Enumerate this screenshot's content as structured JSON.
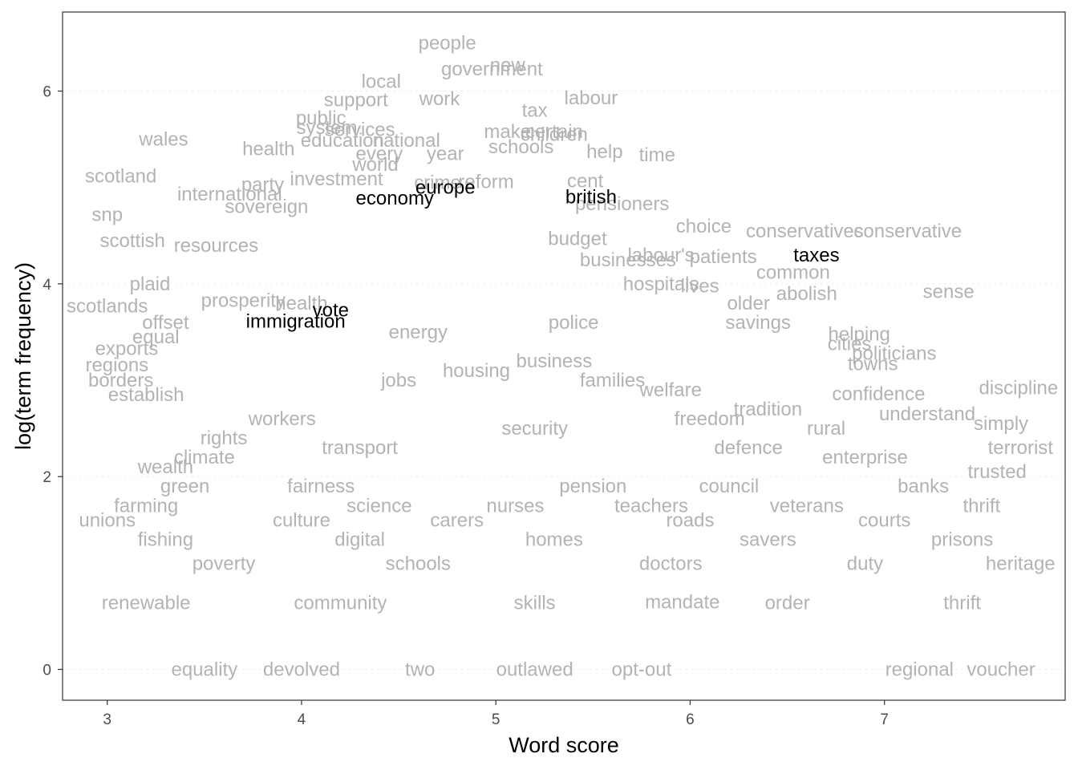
{
  "chart_data": {
    "type": "scatter",
    "title": "",
    "xlabel": "Word score",
    "ylabel": "log(term frequency)",
    "xlim": [
      2.77,
      7.93
    ],
    "ylim": [
      -0.32,
      6.82
    ],
    "x_ticks": [
      3,
      4,
      5,
      6,
      7
    ],
    "y_ticks": [
      0,
      2,
      4,
      6
    ],
    "grid": "dotted horizontal",
    "colors": {
      "background_words": "#b3b3b3",
      "highlighted_words": "#000000",
      "grid": "#ebebeb",
      "panel_border": "#333333"
    },
    "background_words": [
      {
        "label": "people",
        "x": 4.75,
        "y": 6.5
      },
      {
        "label": "new",
        "x": 5.06,
        "y": 6.27
      },
      {
        "label": "government",
        "x": 4.98,
        "y": 6.23
      },
      {
        "label": "local",
        "x": 4.41,
        "y": 6.1
      },
      {
        "label": "work",
        "x": 4.71,
        "y": 5.92
      },
      {
        "label": "labour",
        "x": 5.49,
        "y": 5.93
      },
      {
        "label": "support",
        "x": 4.28,
        "y": 5.91
      },
      {
        "label": "tax",
        "x": 5.2,
        "y": 5.8
      },
      {
        "label": "public",
        "x": 4.1,
        "y": 5.72
      },
      {
        "label": "services",
        "x": 4.3,
        "y": 5.6
      },
      {
        "label": "system",
        "x": 4.13,
        "y": 5.62
      },
      {
        "label": "make",
        "x": 5.06,
        "y": 5.58
      },
      {
        "label": "certain",
        "x": 5.3,
        "y": 5.58
      },
      {
        "label": "children",
        "x": 5.3,
        "y": 5.55
      },
      {
        "label": "education",
        "x": 4.21,
        "y": 5.49
      },
      {
        "label": "national",
        "x": 4.54,
        "y": 5.49
      },
      {
        "label": "schools",
        "x": 5.13,
        "y": 5.42
      },
      {
        "label": "wales",
        "x": 3.29,
        "y": 5.5
      },
      {
        "label": "health",
        "x": 3.83,
        "y": 5.4
      },
      {
        "label": "every",
        "x": 4.4,
        "y": 5.35
      },
      {
        "label": "year",
        "x": 4.74,
        "y": 5.35
      },
      {
        "label": "help",
        "x": 5.56,
        "y": 5.37
      },
      {
        "label": "time",
        "x": 5.83,
        "y": 5.34
      },
      {
        "label": "world",
        "x": 4.38,
        "y": 5.24
      },
      {
        "label": "scotland",
        "x": 3.07,
        "y": 5.12
      },
      {
        "label": "investment",
        "x": 4.18,
        "y": 5.09
      },
      {
        "label": "crime",
        "x": 4.7,
        "y": 5.05
      },
      {
        "label": "party",
        "x": 3.8,
        "y": 5.03
      },
      {
        "label": "international",
        "x": 3.63,
        "y": 4.93
      },
      {
        "label": "reform",
        "x": 4.95,
        "y": 5.06
      },
      {
        "label": "cent",
        "x": 5.46,
        "y": 5.07
      },
      {
        "label": "pensioners",
        "x": 5.65,
        "y": 4.83
      },
      {
        "label": "snp",
        "x": 3.0,
        "y": 4.72
      },
      {
        "label": "sovereign",
        "x": 3.82,
        "y": 4.8
      },
      {
        "label": "choice",
        "x": 6.07,
        "y": 4.6
      },
      {
        "label": "scottish",
        "x": 3.13,
        "y": 4.45
      },
      {
        "label": "resources",
        "x": 3.56,
        "y": 4.4
      },
      {
        "label": "budget",
        "x": 5.42,
        "y": 4.47
      },
      {
        "label": "conservatives",
        "x": 6.59,
        "y": 4.55
      },
      {
        "label": "conservative",
        "x": 7.12,
        "y": 4.55
      },
      {
        "label": "labour's",
        "x": 5.85,
        "y": 4.3
      },
      {
        "label": "patients",
        "x": 6.17,
        "y": 4.28
      },
      {
        "label": "businesses",
        "x": 5.68,
        "y": 4.25
      },
      {
        "label": "common",
        "x": 6.53,
        "y": 4.12
      },
      {
        "label": "lives",
        "x": 6.05,
        "y": 3.98
      },
      {
        "label": "abolish",
        "x": 6.6,
        "y": 3.9
      },
      {
        "label": "older",
        "x": 6.3,
        "y": 3.8
      },
      {
        "label": "sense",
        "x": 7.33,
        "y": 3.92
      },
      {
        "label": "hospitals",
        "x": 5.85,
        "y": 4.0
      },
      {
        "label": "plaid",
        "x": 3.22,
        "y": 4.0
      },
      {
        "label": "scotlands",
        "x": 3.0,
        "y": 3.77
      },
      {
        "label": "prosperity",
        "x": 3.7,
        "y": 3.83
      },
      {
        "label": "savings",
        "x": 6.35,
        "y": 3.6
      },
      {
        "label": "helping",
        "x": 6.87,
        "y": 3.48
      },
      {
        "label": "cities",
        "x": 6.82,
        "y": 3.38
      },
      {
        "label": "politicians",
        "x": 7.05,
        "y": 3.28
      },
      {
        "label": "towns",
        "x": 6.94,
        "y": 3.17
      },
      {
        "label": "discipline",
        "x": 7.69,
        "y": 2.92
      },
      {
        "label": "confidence",
        "x": 6.97,
        "y": 2.86
      },
      {
        "label": "understand",
        "x": 7.22,
        "y": 2.65
      },
      {
        "label": "simply",
        "x": 7.6,
        "y": 2.55
      },
      {
        "label": "borders",
        "x": 3.07,
        "y": 3.0
      },
      {
        "label": "establish",
        "x": 3.2,
        "y": 2.85
      },
      {
        "label": "exports",
        "x": 3.1,
        "y": 3.33
      },
      {
        "label": "regions",
        "x": 3.05,
        "y": 3.16
      },
      {
        "label": "terrorist",
        "x": 7.7,
        "y": 2.3
      },
      {
        "label": "trusted",
        "x": 7.58,
        "y": 2.05
      },
      {
        "label": "two",
        "x": 4.61,
        "y": 0.0
      },
      {
        "label": "opt-out",
        "x": 5.75,
        "y": 0.0
      },
      {
        "label": "regional",
        "x": 7.18,
        "y": 0.0
      },
      {
        "label": "mandate",
        "x": 5.96,
        "y": 0.7
      },
      {
        "label": "offset",
        "x": 3.3,
        "y": 3.6
      },
      {
        "label": "equal",
        "x": 3.25,
        "y": 3.45
      },
      {
        "label": "health",
        "x": 4.0,
        "y": 3.8
      },
      {
        "label": "energy",
        "x": 4.6,
        "y": 3.5
      },
      {
        "label": "police",
        "x": 5.4,
        "y": 3.6
      },
      {
        "label": "business",
        "x": 5.3,
        "y": 3.2
      },
      {
        "label": "housing",
        "x": 4.9,
        "y": 3.1
      },
      {
        "label": "jobs",
        "x": 4.5,
        "y": 3.0
      },
      {
        "label": "families",
        "x": 5.6,
        "y": 3.0
      },
      {
        "label": "welfare",
        "x": 5.9,
        "y": 2.9
      },
      {
        "label": "tradition",
        "x": 6.4,
        "y": 2.7
      },
      {
        "label": "freedom",
        "x": 6.1,
        "y": 2.6
      },
      {
        "label": "rural",
        "x": 6.7,
        "y": 2.5
      },
      {
        "label": "security",
        "x": 5.2,
        "y": 2.5
      },
      {
        "label": "workers",
        "x": 3.9,
        "y": 2.6
      },
      {
        "label": "rights",
        "x": 3.6,
        "y": 2.4
      },
      {
        "label": "transport",
        "x": 4.3,
        "y": 2.3
      },
      {
        "label": "climate",
        "x": 3.5,
        "y": 2.2
      },
      {
        "label": "defence",
        "x": 6.3,
        "y": 2.3
      },
      {
        "label": "wealth",
        "x": 3.3,
        "y": 2.1
      },
      {
        "label": "enterprise",
        "x": 6.9,
        "y": 2.2
      },
      {
        "label": "green",
        "x": 3.4,
        "y": 1.9
      },
      {
        "label": "fairness",
        "x": 4.1,
        "y": 1.9
      },
      {
        "label": "pension",
        "x": 5.5,
        "y": 1.9
      },
      {
        "label": "council",
        "x": 6.2,
        "y": 1.9
      },
      {
        "label": "banks",
        "x": 7.2,
        "y": 1.9
      },
      {
        "label": "farming",
        "x": 3.2,
        "y": 1.7
      },
      {
        "label": "science",
        "x": 4.4,
        "y": 1.7
      },
      {
        "label": "nurses",
        "x": 5.1,
        "y": 1.7
      },
      {
        "label": "teachers",
        "x": 5.8,
        "y": 1.7
      },
      {
        "label": "veterans",
        "x": 6.6,
        "y": 1.7
      },
      {
        "label": "thrift",
        "x": 7.5,
        "y": 1.7
      },
      {
        "label": "unions",
        "x": 3.0,
        "y": 1.55
      },
      {
        "label": "culture",
        "x": 4.0,
        "y": 1.55
      },
      {
        "label": "carers",
        "x": 4.8,
        "y": 1.55
      },
      {
        "label": "roads",
        "x": 6.0,
        "y": 1.55
      },
      {
        "label": "courts",
        "x": 7.0,
        "y": 1.55
      },
      {
        "label": "fishing",
        "x": 3.3,
        "y": 1.35
      },
      {
        "label": "digital",
        "x": 4.3,
        "y": 1.35
      },
      {
        "label": "homes",
        "x": 5.3,
        "y": 1.35
      },
      {
        "label": "savers",
        "x": 6.4,
        "y": 1.35
      },
      {
        "label": "prisons",
        "x": 7.4,
        "y": 1.35
      },
      {
        "label": "poverty",
        "x": 3.6,
        "y": 1.1
      },
      {
        "label": "schools",
        "x": 4.6,
        "y": 1.1
      },
      {
        "label": "doctors",
        "x": 5.9,
        "y": 1.1
      },
      {
        "label": "duty",
        "x": 6.9,
        "y": 1.1
      },
      {
        "label": "heritage",
        "x": 7.7,
        "y": 1.1
      },
      {
        "label": "renewable",
        "x": 3.2,
        "y": 0.69
      },
      {
        "label": "community",
        "x": 4.2,
        "y": 0.69
      },
      {
        "label": "skills",
        "x": 5.2,
        "y": 0.69
      },
      {
        "label": "order",
        "x": 6.5,
        "y": 0.69
      },
      {
        "label": "thrift",
        "x": 7.4,
        "y": 0.69
      },
      {
        "label": "equality",
        "x": 3.5,
        "y": 0.0
      },
      {
        "label": "devolved",
        "x": 4.0,
        "y": 0.0
      },
      {
        "label": "outlawed",
        "x": 5.2,
        "y": 0.0
      },
      {
        "label": "voucher",
        "x": 7.6,
        "y": 0.0
      }
    ],
    "highlighted_words": [
      {
        "label": "europe",
        "x": 4.74,
        "y": 5.0
      },
      {
        "label": "economy",
        "x": 4.48,
        "y": 4.89
      },
      {
        "label": "british",
        "x": 5.49,
        "y": 4.9
      },
      {
        "label": "taxes",
        "x": 6.65,
        "y": 4.3
      },
      {
        "label": "vote",
        "x": 4.15,
        "y": 3.73
      },
      {
        "label": "immigration",
        "x": 3.97,
        "y": 3.61
      }
    ]
  }
}
